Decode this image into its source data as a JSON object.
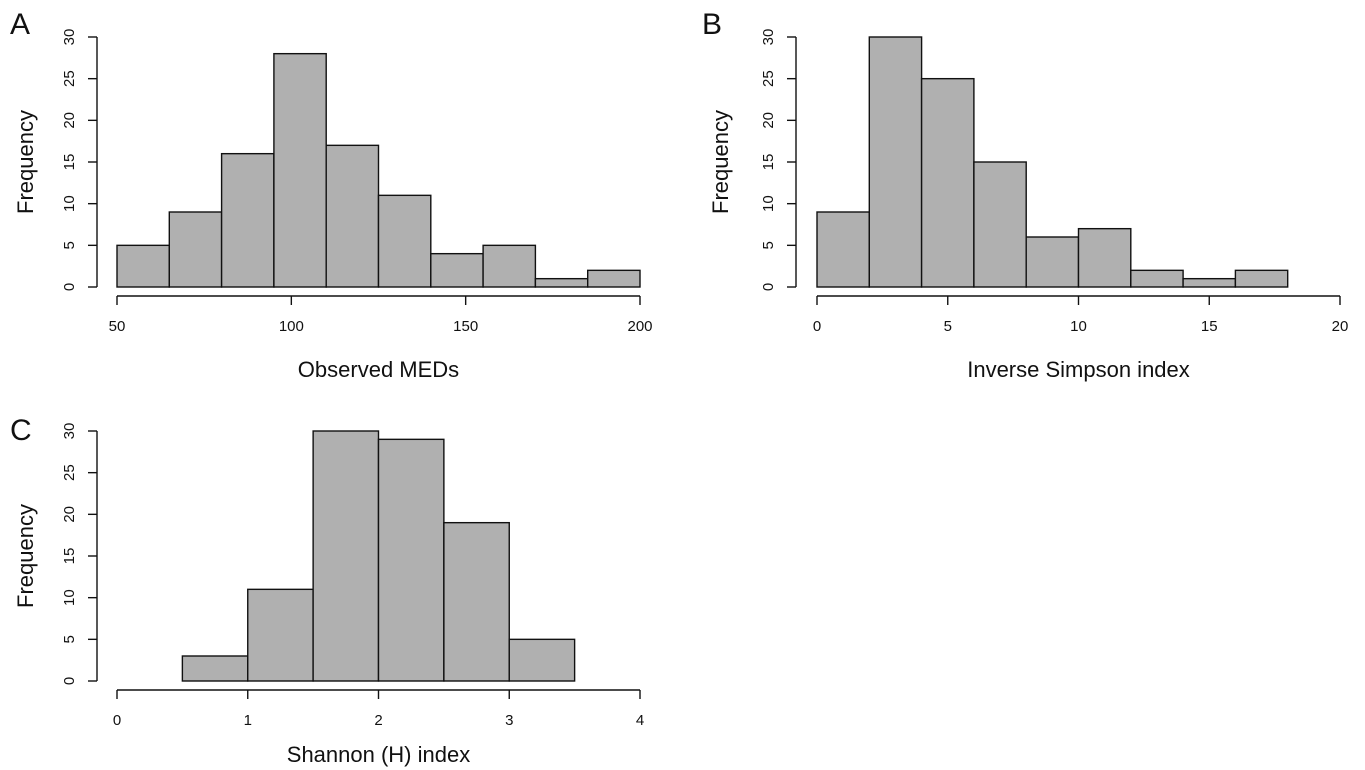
{
  "chart_data": [
    {
      "panel": "A",
      "type": "bar",
      "xlabel": "Observed MEDs",
      "ylabel": "Frequency",
      "bin_edges": [
        50,
        65,
        80,
        95,
        110,
        125,
        140,
        155,
        170,
        185,
        200
      ],
      "values": [
        5,
        9,
        16,
        28,
        17,
        11,
        4,
        5,
        1,
        2
      ],
      "xticks": [
        50,
        100,
        150,
        200
      ],
      "yticks": [
        0,
        5,
        10,
        15,
        20,
        25,
        30
      ],
      "xlim": [
        50,
        200
      ],
      "ylim": [
        0,
        30
      ]
    },
    {
      "panel": "B",
      "type": "bar",
      "xlabel": "Inverse Simpson index",
      "ylabel": "Frequency",
      "bin_edges": [
        0,
        2,
        4,
        6,
        8,
        10,
        12,
        14,
        16,
        18
      ],
      "values": [
        9,
        30,
        25,
        15,
        6,
        7,
        2,
        1,
        2
      ],
      "xticks": [
        0,
        5,
        10,
        15,
        20
      ],
      "yticks": [
        0,
        5,
        10,
        15,
        20,
        25,
        30
      ],
      "xlim": [
        0,
        20
      ],
      "ylim": [
        0,
        30
      ]
    },
    {
      "panel": "C",
      "type": "bar",
      "xlabel": "Shannon (H) index",
      "ylabel": "Frequency",
      "bin_edges": [
        0.5,
        1,
        1.5,
        2,
        2.5,
        3,
        3.5
      ],
      "values": [
        3,
        11,
        30,
        29,
        19,
        5
      ],
      "xticks": [
        0,
        1,
        2,
        3,
        4
      ],
      "yticks": [
        0,
        5,
        10,
        15,
        20,
        25,
        30
      ],
      "xlim": [
        0,
        4
      ],
      "ylim": [
        0,
        30
      ]
    }
  ]
}
